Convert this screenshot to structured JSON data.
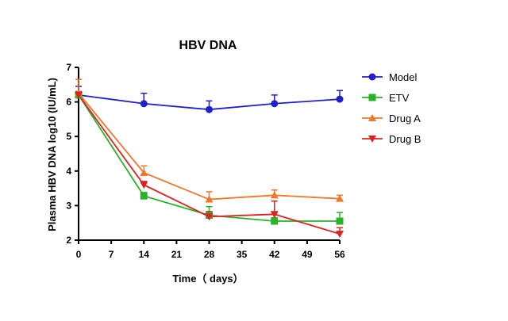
{
  "chart_data": {
    "type": "line",
    "title": "HBV DNA",
    "xlabel": "Time（ days）",
    "ylabel": "Plasma HBV DNA log10 (IU/mL)",
    "xlim": [
      0,
      56
    ],
    "ylim": [
      2,
      7
    ],
    "xticks": [
      0,
      7,
      14,
      21,
      28,
      35,
      42,
      49,
      56
    ],
    "yticks": [
      2,
      3,
      4,
      5,
      6,
      7
    ],
    "grid": false,
    "legend_position": "right",
    "x": [
      0,
      14,
      28,
      42,
      56
    ],
    "series": [
      {
        "name": "Model",
        "color": "#1f1fd0",
        "marker": "circle",
        "values": [
          6.2,
          5.95,
          5.78,
          5.95,
          6.08
        ],
        "error": [
          0.25,
          0.3,
          0.25,
          0.25,
          0.25
        ]
      },
      {
        "name": "ETV",
        "color": "#28b428",
        "marker": "square",
        "values": [
          6.2,
          3.28,
          2.72,
          2.55,
          2.55
        ],
        "error": [
          0.1,
          0.1,
          0.25,
          0.1,
          0.25
        ]
      },
      {
        "name": "Drug A",
        "color": "#f07828",
        "marker": "triangle-up",
        "values": [
          6.25,
          3.95,
          3.18,
          3.3,
          3.2
        ],
        "error": [
          0.4,
          0.2,
          0.22,
          0.15,
          0.1
        ]
      },
      {
        "name": "Drug B",
        "color": "#e02020",
        "marker": "triangle-down",
        "values": [
          6.2,
          3.6,
          2.68,
          2.75,
          2.18
        ],
        "error": [
          0.1,
          0.1,
          0.15,
          0.38,
          0.18
        ]
      }
    ]
  }
}
